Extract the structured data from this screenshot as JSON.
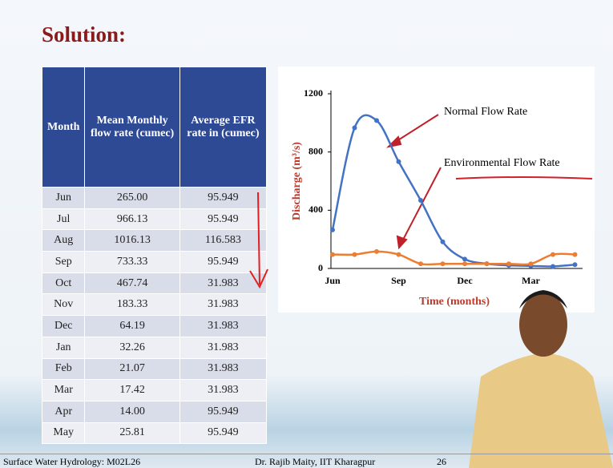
{
  "slide": {
    "title": "Solution:"
  },
  "table": {
    "header": [
      "Month",
      "Mean Monthly flow rate (cumec)",
      "Average EFR rate in (cumec)"
    ],
    "rows": [
      [
        "Jun",
        "265.00",
        "95.949"
      ],
      [
        "Jul",
        "966.13",
        "95.949"
      ],
      [
        "Aug",
        "1016.13",
        "116.583"
      ],
      [
        "Sep",
        "733.33",
        "95.949"
      ],
      [
        "Oct",
        "467.74",
        "31.983"
      ],
      [
        "Nov",
        "183.33",
        "31.983"
      ],
      [
        "Dec",
        "64.19",
        "31.983"
      ],
      [
        "Jan",
        "32.26",
        "31.983"
      ],
      [
        "Feb",
        "21.07",
        "31.983"
      ],
      [
        "Mar",
        "17.42",
        "31.983"
      ],
      [
        "Apr",
        "14.00",
        "95.949"
      ],
      [
        "May",
        "25.81",
        "95.949"
      ]
    ]
  },
  "chart_data": {
    "type": "line",
    "x_label": "Time (months)",
    "y_label": "Discharge (m³/s)",
    "categories": [
      "Jun",
      null,
      null,
      "Sep",
      null,
      null,
      "Dec",
      null,
      null,
      "Mar",
      null,
      null
    ],
    "series": [
      {
        "name": "Normal Flow Rate",
        "color": "#4472c4",
        "values": [
          265.0,
          966.13,
          1016.13,
          733.33,
          467.74,
          183.33,
          64.19,
          32.26,
          21.07,
          17.42,
          14.0,
          25.81
        ]
      },
      {
        "name": "Environmental Flow Rate",
        "color": "#ed7d31",
        "values": [
          95.949,
          95.949,
          116.583,
          95.949,
          31.983,
          31.983,
          31.983,
          31.983,
          31.983,
          31.983,
          95.949,
          95.949
        ]
      }
    ],
    "ylim": [
      0,
      1200
    ],
    "yticks": [
      0,
      400,
      800,
      1200
    ]
  },
  "footer": {
    "left": "Surface Water Hydrology: M02L26",
    "center": "Dr. Rajib Maity, IIT Kharagpur",
    "page": "26"
  }
}
